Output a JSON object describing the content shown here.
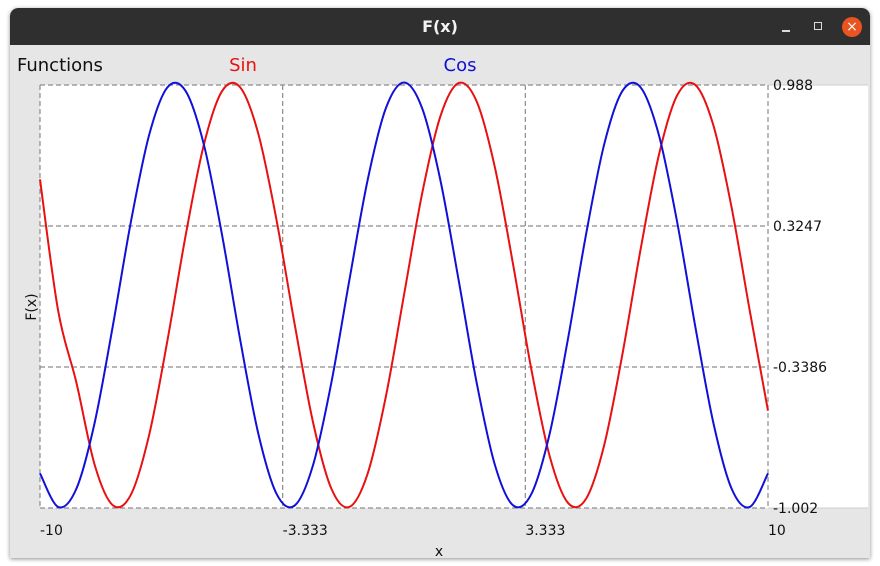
{
  "window": {
    "title": "F(x)",
    "controls": {
      "minimize": "minimize",
      "maximize": "maximize",
      "close": "×"
    }
  },
  "colors": {
    "sin": "#e81010",
    "cos": "#1010d8",
    "grid": "#8c8c8c",
    "plot_bg": "#ffffff",
    "frame_bg": "#e6e6e6"
  },
  "chart_data": {
    "type": "line",
    "title": "Functions",
    "xlabel": "x",
    "ylabel": "F(x)",
    "xlim": [
      -10,
      10
    ],
    "ylim": [
      -1.002,
      0.988
    ],
    "x_ticks": [
      -10,
      -3.333,
      3.333,
      10
    ],
    "x_tick_labels": [
      "-10",
      "-3.333",
      "3.333",
      "10"
    ],
    "y_ticks": [
      0.988,
      0.3247,
      -0.3386,
      -1.002
    ],
    "y_tick_labels": [
      "0.988",
      "0.3247",
      "-0.3386",
      "-1.002"
    ],
    "grid": true,
    "legend_placement": "top",
    "series": [
      {
        "name": "Sin",
        "color": "#e81010",
        "x": [
          -10,
          -9.5,
          -9,
          -8.5,
          -8,
          -7.5,
          -7,
          -6.5,
          -6,
          -5.5,
          -5,
          -4.5,
          -4,
          -3.5,
          -3,
          -2.5,
          -2,
          -1.5,
          -1,
          -0.5,
          0,
          0.5,
          1,
          1.5,
          2,
          2.5,
          3,
          3.5,
          4,
          4.5,
          5,
          5.5,
          6,
          6.5,
          7,
          7.5,
          8,
          8.5,
          9,
          9.5,
          10
        ],
        "values": [
          0.544,
          -0.075,
          -0.412,
          -0.798,
          -0.989,
          -0.938,
          -0.657,
          -0.215,
          0.279,
          0.706,
          0.959,
          0.977,
          0.757,
          0.351,
          -0.141,
          -0.598,
          -0.909,
          -0.997,
          -0.841,
          -0.479,
          0.0,
          0.479,
          0.841,
          0.997,
          0.909,
          0.598,
          0.141,
          -0.351,
          -0.757,
          -0.977,
          -0.959,
          -0.706,
          -0.279,
          0.215,
          0.657,
          0.938,
          0.989,
          0.798,
          0.412,
          -0.075,
          -0.544
        ]
      },
      {
        "name": "Cos",
        "color": "#1010d8",
        "x": [
          -10,
          -9.5,
          -9,
          -8.5,
          -8,
          -7.5,
          -7,
          -6.5,
          -6,
          -5.5,
          -5,
          -4.5,
          -4,
          -3.5,
          -3,
          -2.5,
          -2,
          -1.5,
          -1,
          -0.5,
          0,
          0.5,
          1,
          1.5,
          2,
          2.5,
          3,
          3.5,
          4,
          4.5,
          5,
          5.5,
          6,
          6.5,
          7,
          7.5,
          8,
          8.5,
          9,
          9.5,
          10
        ],
        "values": [
          -0.839,
          -0.997,
          -0.911,
          -0.602,
          -0.146,
          0.347,
          0.754,
          0.977,
          0.96,
          0.709,
          0.284,
          -0.211,
          -0.654,
          -0.936,
          -0.99,
          -0.801,
          -0.416,
          0.071,
          0.54,
          0.878,
          1.0,
          0.878,
          0.54,
          0.071,
          -0.416,
          -0.801,
          -0.99,
          -0.936,
          -0.654,
          -0.211,
          0.284,
          0.709,
          0.96,
          0.977,
          0.754,
          0.347,
          -0.146,
          -0.602,
          -0.911,
          -0.997,
          -0.839
        ]
      }
    ]
  }
}
